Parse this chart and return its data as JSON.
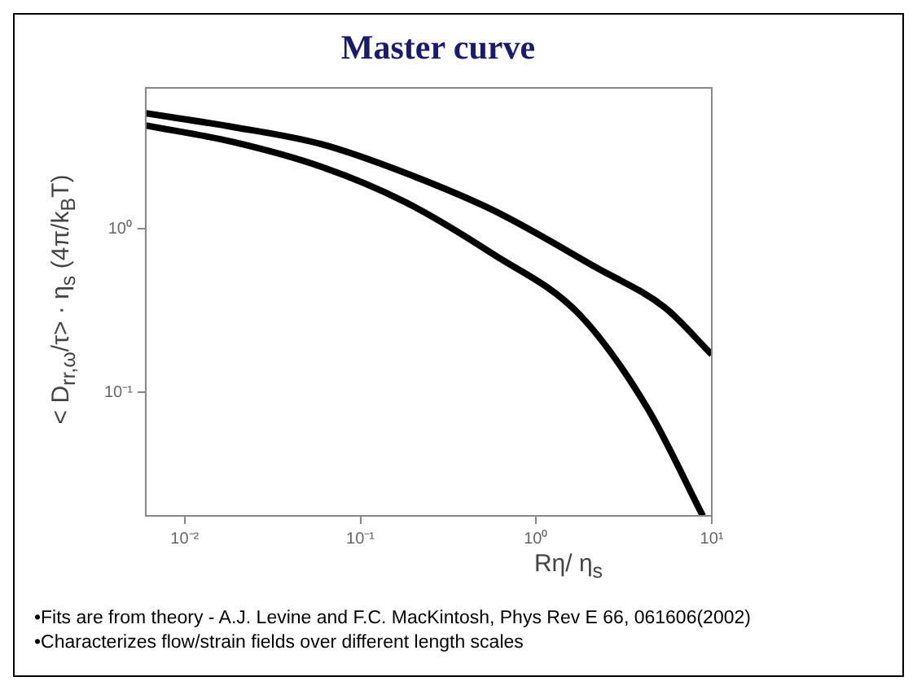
{
  "chart_data": {
    "type": "line",
    "title": "Master curve",
    "xlabel": "Rη/ η$_{s}$",
    "ylabel": "< D$_{rr,ω}$/τ> · η$_{s}$ (4π/k$_{B}$T)",
    "log": "xy",
    "grid": false,
    "legend": false,
    "marker": "none",
    "line_style": "solid",
    "xlim": [
      0.006,
      10
    ],
    "ylim": [
      0.0175,
      7.3
    ],
    "xticks": [
      {
        "value": 0.01,
        "label": "10⁻²"
      },
      {
        "value": 0.1,
        "label": "10⁻¹"
      },
      {
        "value": 1,
        "label": "10⁰"
      },
      {
        "value": 10,
        "label": "10¹"
      }
    ],
    "yticks": [
      {
        "value": 0.1,
        "label": "10⁻¹"
      },
      {
        "value": 1,
        "label": "10⁰"
      }
    ],
    "series": [
      {
        "color": "#000000",
        "x": [
          0.006,
          0.019,
          0.06,
          0.18,
          0.57,
          2.2,
          5.4,
          10
        ],
        "values": [
          5.1,
          4.2,
          3.3,
          2.2,
          1.3,
          0.58,
          0.33,
          0.17
        ]
      },
      {
        "color": "#000000",
        "x": [
          0.006,
          0.019,
          0.06,
          0.18,
          0.57,
          1.76,
          4.3,
          8.9
        ],
        "values": [
          4.3,
          3.4,
          2.4,
          1.46,
          0.7,
          0.3,
          0.08,
          0.0175
        ]
      }
    ],
    "annotations": [
      "•Fits are from theory  - A.J. Levine and F.C. MacKintosh, Phys Rev E 66, 061606(2002)",
      "•Characterizes flow/strain fields over different length scales"
    ]
  }
}
